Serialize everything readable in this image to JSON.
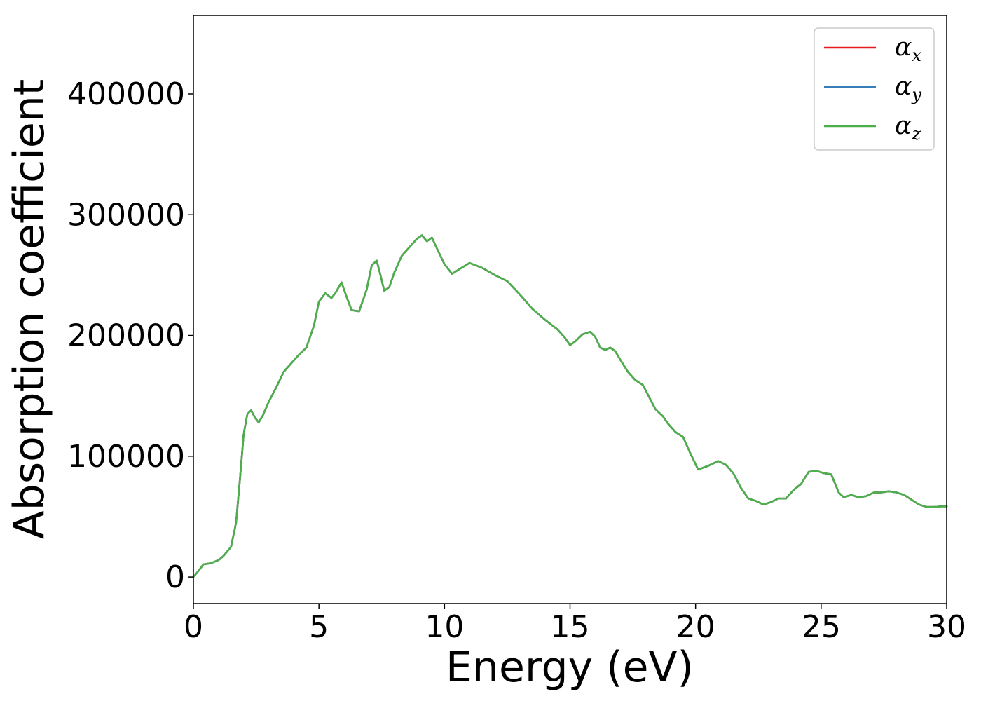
{
  "chart_data": {
    "type": "line",
    "title": "",
    "xlabel": "Energy (eV)",
    "ylabel": "Absorption coefficient",
    "xlim": [
      0,
      30
    ],
    "ylim": [
      -22000,
      465000
    ],
    "xticks": [
      0,
      5,
      10,
      15,
      20,
      25,
      30
    ],
    "yticks": [
      0,
      100000,
      200000,
      300000,
      400000
    ],
    "grid": false,
    "legend_position": "top-right",
    "series": [
      {
        "name": "α_x",
        "label_main": "α",
        "label_sub": "x",
        "color": "#e41a1c",
        "x": [
          0,
          0.2,
          0.4,
          0.7,
          1.0,
          1.2,
          1.5,
          1.7,
          1.85,
          2.0,
          2.15,
          2.3,
          2.45,
          2.6,
          2.75,
          3.0,
          3.3,
          3.6,
          3.9,
          4.2,
          4.5,
          4.8,
          5.0,
          5.25,
          5.5,
          5.65,
          5.9,
          6.1,
          6.3,
          6.6,
          6.9,
          7.1,
          7.3,
          7.45,
          7.6,
          7.8,
          8.0,
          8.3,
          8.6,
          8.9,
          9.1,
          9.3,
          9.5,
          9.7,
          10.0,
          10.3,
          10.6,
          11.0,
          11.5,
          12.0,
          12.5,
          13.0,
          13.5,
          14.0,
          14.5,
          14.8,
          15.0,
          15.2,
          15.5,
          15.8,
          16.0,
          16.2,
          16.4,
          16.6,
          16.8,
          17.0,
          17.3,
          17.6,
          17.9,
          18.1,
          18.4,
          18.7,
          18.9,
          19.2,
          19.5,
          19.8,
          20.1,
          20.5,
          20.9,
          21.2,
          21.5,
          21.8,
          22.1,
          22.4,
          22.7,
          23.0,
          23.3,
          23.6,
          23.9,
          24.2,
          24.5,
          24.8,
          25.1,
          25.4,
          25.7,
          25.9,
          26.2,
          26.5,
          26.8,
          27.1,
          27.4,
          27.7,
          28.0,
          28.3,
          28.6,
          28.9,
          29.2,
          29.5,
          29.8,
          30.0
        ],
        "y": [
          0,
          5000,
          10500,
          11500,
          14000,
          17500,
          25000,
          45000,
          80000,
          118000,
          135000,
          138000,
          132000,
          128000,
          133000,
          145000,
          157000,
          170000,
          177000,
          184000,
          190000,
          208000,
          228000,
          235000,
          231000,
          235000,
          244000,
          232000,
          221000,
          220000,
          238000,
          258000,
          262000,
          250000,
          237000,
          240000,
          252000,
          266000,
          273000,
          280000,
          283000,
          278000,
          281000,
          272000,
          259000,
          251000,
          255000,
          260000,
          256000,
          250000,
          245000,
          234000,
          222000,
          213000,
          205000,
          198000,
          192000,
          195000,
          201000,
          203000,
          199000,
          190000,
          188000,
          190000,
          187000,
          180000,
          170000,
          163000,
          159000,
          151000,
          139000,
          133000,
          127000,
          120000,
          116000,
          102000,
          89000,
          92000,
          96000,
          93000,
          86000,
          74000,
          65000,
          63000,
          60000,
          62000,
          65000,
          65000,
          72000,
          77000,
          87000,
          88000,
          86000,
          85000,
          70000,
          66000,
          68000,
          66000,
          67000,
          70000,
          70000,
          71000,
          70000,
          68000,
          64000,
          60000,
          58000,
          58000,
          58500,
          58500
        ]
      },
      {
        "name": "α_y",
        "label_main": "α",
        "label_sub": "y",
        "color": "#377eb8",
        "x": [
          0,
          0.2,
          0.4,
          0.7,
          1.0,
          1.2,
          1.5,
          1.7,
          1.85,
          2.0,
          2.15,
          2.3,
          2.45,
          2.6,
          2.75,
          3.0,
          3.3,
          3.6,
          3.9,
          4.2,
          4.5,
          4.8,
          5.0,
          5.25,
          5.5,
          5.65,
          5.9,
          6.1,
          6.3,
          6.6,
          6.9,
          7.1,
          7.3,
          7.45,
          7.6,
          7.8,
          8.0,
          8.3,
          8.6,
          8.9,
          9.1,
          9.3,
          9.5,
          9.7,
          10.0,
          10.3,
          10.6,
          11.0,
          11.5,
          12.0,
          12.5,
          13.0,
          13.5,
          14.0,
          14.5,
          14.8,
          15.0,
          15.2,
          15.5,
          15.8,
          16.0,
          16.2,
          16.4,
          16.6,
          16.8,
          17.0,
          17.3,
          17.6,
          17.9,
          18.1,
          18.4,
          18.7,
          18.9,
          19.2,
          19.5,
          19.8,
          20.1,
          20.5,
          20.9,
          21.2,
          21.5,
          21.8,
          22.1,
          22.4,
          22.7,
          23.0,
          23.3,
          23.6,
          23.9,
          24.2,
          24.5,
          24.8,
          25.1,
          25.4,
          25.7,
          25.9,
          26.2,
          26.5,
          26.8,
          27.1,
          27.4,
          27.7,
          28.0,
          28.3,
          28.6,
          28.9,
          29.2,
          29.5,
          29.8,
          30.0
        ],
        "y": [
          0,
          5000,
          10500,
          11500,
          14000,
          17500,
          25000,
          45000,
          80000,
          118000,
          135000,
          138000,
          132000,
          128000,
          133000,
          145000,
          157000,
          170000,
          177000,
          184000,
          190000,
          208000,
          228000,
          235000,
          231000,
          235000,
          244000,
          232000,
          221000,
          220000,
          238000,
          258000,
          262000,
          250000,
          237000,
          240000,
          252000,
          266000,
          273000,
          280000,
          283000,
          278000,
          281000,
          272000,
          259000,
          251000,
          255000,
          260000,
          256000,
          250000,
          245000,
          234000,
          222000,
          213000,
          205000,
          198000,
          192000,
          195000,
          201000,
          203000,
          199000,
          190000,
          188000,
          190000,
          187000,
          180000,
          170000,
          163000,
          159000,
          151000,
          139000,
          133000,
          127000,
          120000,
          116000,
          102000,
          89000,
          92000,
          96000,
          93000,
          86000,
          74000,
          65000,
          63000,
          60000,
          62000,
          65000,
          65000,
          72000,
          77000,
          87000,
          88000,
          86000,
          85000,
          70000,
          66000,
          68000,
          66000,
          67000,
          70000,
          70000,
          71000,
          70000,
          68000,
          64000,
          60000,
          58000,
          58000,
          58500,
          58500
        ]
      },
      {
        "name": "α_z",
        "label_main": "α",
        "label_sub": "z",
        "color": "#4daf4a",
        "x": [
          0,
          0.2,
          0.4,
          0.7,
          1.0,
          1.2,
          1.5,
          1.7,
          1.85,
          2.0,
          2.15,
          2.3,
          2.45,
          2.6,
          2.75,
          3.0,
          3.3,
          3.6,
          3.9,
          4.2,
          4.5,
          4.8,
          5.0,
          5.25,
          5.5,
          5.65,
          5.9,
          6.1,
          6.3,
          6.6,
          6.9,
          7.1,
          7.3,
          7.45,
          7.6,
          7.8,
          8.0,
          8.3,
          8.6,
          8.9,
          9.1,
          9.3,
          9.5,
          9.7,
          10.0,
          10.3,
          10.6,
          11.0,
          11.5,
          12.0,
          12.5,
          13.0,
          13.5,
          14.0,
          14.5,
          14.8,
          15.0,
          15.2,
          15.5,
          15.8,
          16.0,
          16.2,
          16.4,
          16.6,
          16.8,
          17.0,
          17.3,
          17.6,
          17.9,
          18.1,
          18.4,
          18.7,
          18.9,
          19.2,
          19.5,
          19.8,
          20.1,
          20.5,
          20.9,
          21.2,
          21.5,
          21.8,
          22.1,
          22.4,
          22.7,
          23.0,
          23.3,
          23.6,
          23.9,
          24.2,
          24.5,
          24.8,
          25.1,
          25.4,
          25.7,
          25.9,
          26.2,
          26.5,
          26.8,
          27.1,
          27.4,
          27.7,
          28.0,
          28.3,
          28.6,
          28.9,
          29.2,
          29.5,
          29.8,
          30.0
        ],
        "y": [
          0,
          5000,
          10500,
          11500,
          14000,
          17500,
          25000,
          45000,
          80000,
          118000,
          135000,
          138000,
          132000,
          128000,
          133000,
          145000,
          157000,
          170000,
          177000,
          184000,
          190000,
          208000,
          228000,
          235000,
          231000,
          235000,
          244000,
          232000,
          221000,
          220000,
          238000,
          258000,
          262000,
          250000,
          237000,
          240000,
          252000,
          266000,
          273000,
          280000,
          283000,
          278000,
          281000,
          272000,
          259000,
          251000,
          255000,
          260000,
          256000,
          250000,
          245000,
          234000,
          222000,
          213000,
          205000,
          198000,
          192000,
          195000,
          201000,
          203000,
          199000,
          190000,
          188000,
          190000,
          187000,
          180000,
          170000,
          163000,
          159000,
          151000,
          139000,
          133000,
          127000,
          120000,
          116000,
          102000,
          89000,
          92000,
          96000,
          93000,
          86000,
          74000,
          65000,
          63000,
          60000,
          62000,
          65000,
          65000,
          72000,
          77000,
          87000,
          88000,
          86000,
          85000,
          70000,
          66000,
          68000,
          66000,
          67000,
          70000,
          70000,
          71000,
          70000,
          68000,
          64000,
          60000,
          58000,
          58000,
          58500,
          58500
        ]
      }
    ]
  }
}
